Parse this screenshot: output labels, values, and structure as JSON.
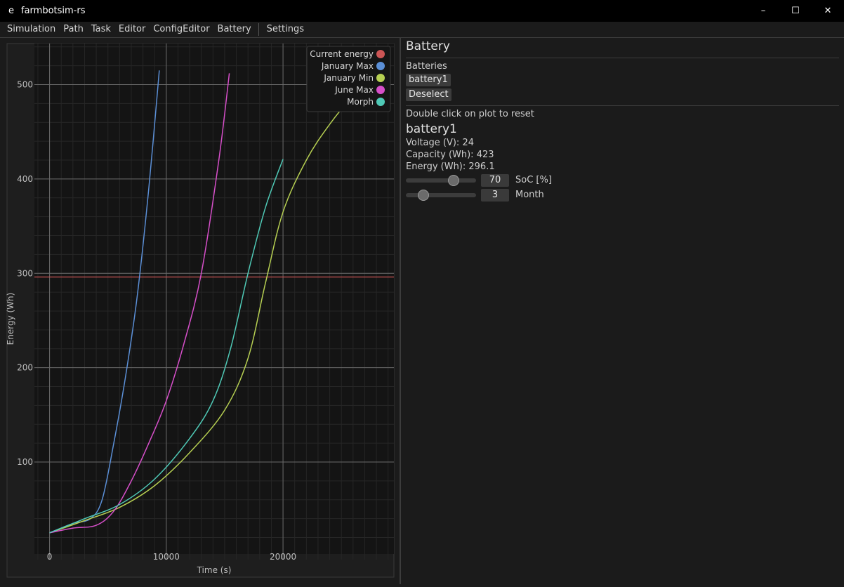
{
  "window": {
    "title": "farmbotsim-rs",
    "icon": "e"
  },
  "window_controls": {
    "minimize": "–",
    "maximize": "☐",
    "close": "✕"
  },
  "menu": [
    "Simulation",
    "Path",
    "Task",
    "Editor",
    "ConfigEditor",
    "Battery",
    "Settings"
  ],
  "battery_panel": {
    "heading": "Battery",
    "batteries_label": "Batteries",
    "battery_button": "battery1",
    "deselect_button": "Deselect",
    "hint": "Double click on plot to reset",
    "selected_name": "battery1",
    "voltage_text": "Voltage (V): 24",
    "capacity_text": "Capacity (Wh): 423",
    "energy_text": "Energy (Wh): 296.1",
    "soc": {
      "value": "70",
      "label": "SoC [%]",
      "fraction": 0.7
    },
    "month": {
      "value": "3",
      "label": "Month",
      "fraction": 0.2
    }
  },
  "chart_data": {
    "type": "line",
    "xlabel": "Time (s)",
    "ylabel": "Energy (Wh)",
    "xlim": [
      -1300,
      29500
    ],
    "ylim": [
      10,
      548
    ],
    "xticks": [
      0,
      10000,
      20000
    ],
    "yticks": [
      100,
      200,
      300,
      400,
      500
    ],
    "grid": true,
    "legend_position": "top-right",
    "series": [
      {
        "name": "Current energy",
        "color": "#cc5555",
        "type": "hline",
        "y": 296.1
      },
      {
        "name": "January Max",
        "color": "#5b8fd6",
        "x": [
          0,
          2000,
          3500,
          4500,
          5500,
          6500,
          7500,
          8500,
          9400
        ],
        "y": [
          25,
          35,
          40,
          60,
          120,
          190,
          275,
          390,
          515
        ]
      },
      {
        "name": "January Min",
        "color": "#b6cf52",
        "x": [
          0,
          3000,
          6000,
          9000,
          12000,
          15000,
          17000,
          18500,
          20000,
          22000,
          24000,
          26000,
          27500
        ],
        "y": [
          25,
          38,
          52,
          75,
          110,
          155,
          210,
          290,
          365,
          420,
          458,
          488,
          505
        ]
      },
      {
        "name": "June Max",
        "color": "#d64fc9",
        "x": [
          0,
          2000,
          4000,
          5500,
          7000,
          8500,
          10000,
          11500,
          13000,
          14500,
          15400
        ],
        "y": [
          25,
          30,
          33,
          48,
          80,
          120,
          165,
          225,
          300,
          420,
          512
        ]
      },
      {
        "name": "Morph",
        "color": "#4fc9b6",
        "x": [
          0,
          3000,
          6000,
          9000,
          12000,
          14000,
          15500,
          17000,
          18500,
          20000
        ],
        "y": [
          25,
          40,
          55,
          82,
          125,
          165,
          220,
          300,
          370,
          421
        ]
      }
    ]
  }
}
